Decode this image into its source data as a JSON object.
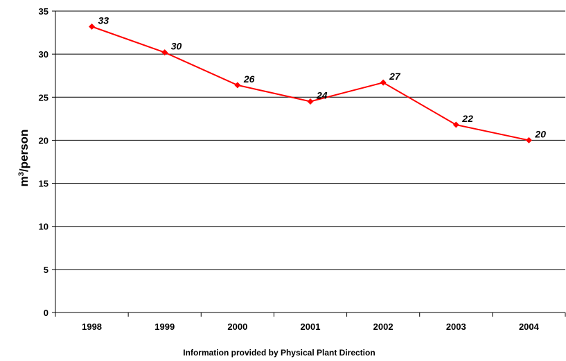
{
  "chart_data": {
    "type": "line",
    "categories": [
      "1998",
      "1999",
      "2000",
      "2001",
      "2002",
      "2003",
      "2004"
    ],
    "values": [
      33.2,
      30.2,
      26.4,
      24.5,
      26.7,
      21.8,
      20.0
    ],
    "data_labels": [
      "33",
      "30",
      "26",
      "24",
      "27",
      "22",
      "20"
    ],
    "ylabel_main": "m",
    "ylabel_sup": "3",
    "ylabel_rest": "/person",
    "ylim": [
      0,
      35
    ],
    "yticks": [
      "0",
      "5",
      "10",
      "15",
      "20",
      "25",
      "30",
      "35"
    ],
    "grid": true,
    "series_color": "#ff0000",
    "note": "Information provided by Physical Plant Direction"
  }
}
